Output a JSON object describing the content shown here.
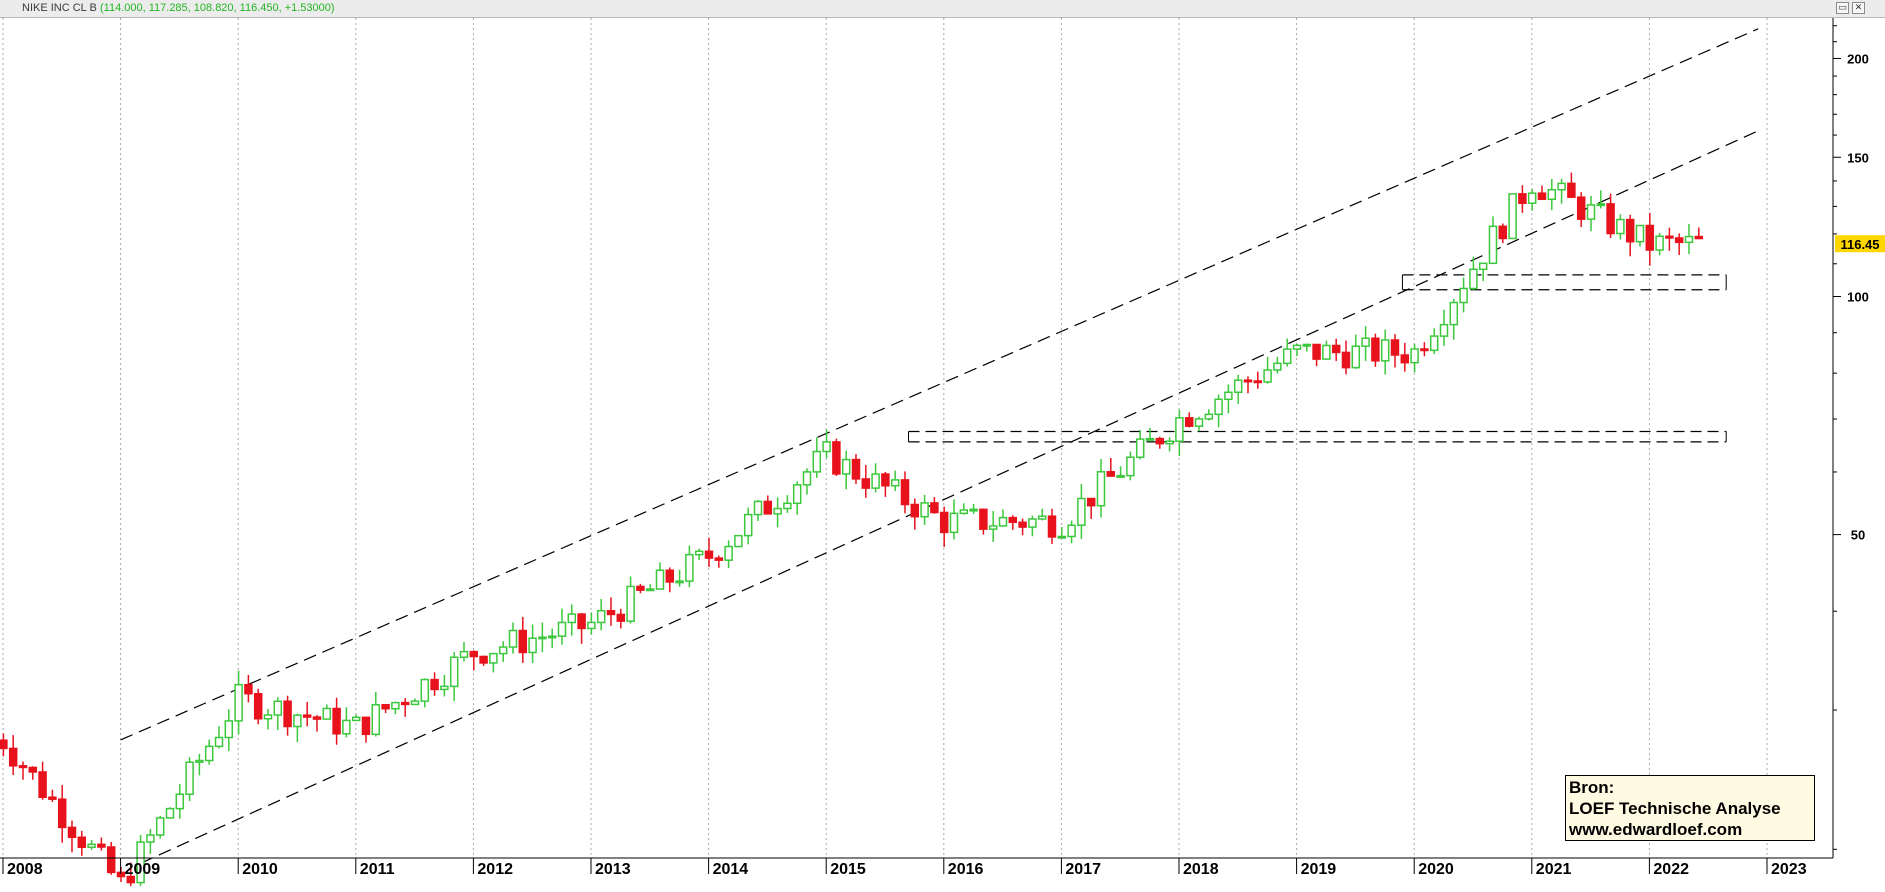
{
  "window": {
    "symbol": "NIKE INC CL B",
    "ohlc_text": "(114.000, 117.285, 108.820, 116.450, +1.53000)",
    "minimize_glyph": "▭",
    "close_glyph": "✕"
  },
  "legend": {
    "line1": "Bron:",
    "line2": "LOEF Technische Analyse",
    "line3": "www.edwardloef.com"
  },
  "colors": {
    "up": "#3cc83c",
    "down": "#e8121c",
    "price_tag_bg": "#ffd700",
    "grid": "#a8a8a8",
    "title_values": "#23b523"
  },
  "chart_data": {
    "type": "candlestick",
    "scale": "log",
    "frequency": "monthly",
    "ylim": [
      19.5,
      225
    ],
    "y_ticks": [
      50,
      100,
      150,
      200
    ],
    "last_price_label": "116.45",
    "last_price": 116.45,
    "x_ticks": [
      "2008",
      "2009",
      "2010",
      "2011",
      "2012",
      "2013",
      "2014",
      "2015",
      "2016",
      "2017",
      "2018",
      "2019",
      "2020",
      "2021",
      "2022",
      "2023"
    ],
    "start_year": 2008,
    "end_year": 2023,
    "series": [
      {
        "label": "2008",
        "close": 27.5
      },
      {
        "label": "2009",
        "close": 18.0
      },
      {
        "label": "2010",
        "close": 31.0
      },
      {
        "label": "2011",
        "close": 28.5
      },
      {
        "label": "2012",
        "close": 35.5
      },
      {
        "label": "2013",
        "close": 38.5
      },
      {
        "label": "2014",
        "close": 47.0
      },
      {
        "label": "2015",
        "close": 63.0
      },
      {
        "label": "2016",
        "close": 52.0
      },
      {
        "label": "2017",
        "close": 52.0
      },
      {
        "label": "2018",
        "close": 70.0
      },
      {
        "label": "2019",
        "close": 85.0
      },
      {
        "label": "2020",
        "close": 85.0
      },
      {
        "label": "2021",
        "close": 140.0
      },
      {
        "label": "2022",
        "close": 116.45
      }
    ],
    "trend_channel": [
      {
        "from": [
          2009.0,
          27.5
        ],
        "to": [
          2022.5,
          218.0
        ]
      },
      {
        "from": [
          2009.17,
          19.2
        ],
        "to": [
          2022.5,
          162.0
        ]
      }
    ],
    "support_zones": [
      {
        "from_date": 2015.7,
        "to_date": 2022.5,
        "top": 67.5,
        "bottom": 65.5
      },
      {
        "from_date": 2019.9,
        "to_date": 2022.5,
        "top": 106.5,
        "bottom": 102.0
      }
    ]
  }
}
